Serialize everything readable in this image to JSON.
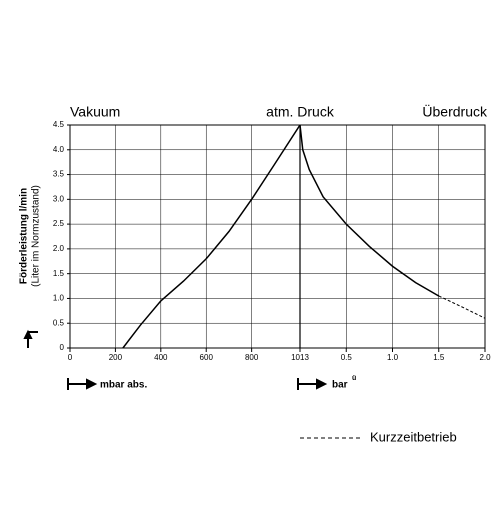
{
  "chart_data": {
    "type": "line",
    "region_labels": [
      "Vakuum",
      "atm. Druck",
      "Überdruck"
    ],
    "y_label": "Förderleistung l/min",
    "y_sublabel": "(Liter im Normzustand)",
    "ylim": [
      0,
      4.5
    ],
    "yticks": [
      0,
      0.5,
      {
        "value": 1,
        "label": "1.0"
      },
      1.5,
      {
        "value": 2,
        "label": "2.0"
      },
      2.5,
      {
        "value": 3,
        "label": "3.0"
      },
      3.5,
      {
        "value": 4,
        "label": "4.0"
      },
      4.5
    ],
    "grid": true,
    "x_left": {
      "label": "mbar abs.",
      "xlim": [
        0,
        1013
      ],
      "xticks": [
        0,
        200,
        400,
        600,
        800,
        1013
      ]
    },
    "x_right": {
      "label": "bar",
      "label_sup": "ü",
      "xlim": [
        0,
        2
      ],
      "xticks": [
        0.5,
        {
          "value": 1,
          "label": "1.0"
        },
        1.5,
        {
          "value": 2,
          "label": "2.0"
        }
      ]
    },
    "series": [
      {
        "xaxis": "left",
        "color": "#000000",
        "style": "solid",
        "x": [
          233,
          310,
          400,
          500,
          600,
          700,
          800,
          900,
          1013
        ],
        "values": [
          0,
          0.46,
          0.95,
          1.35,
          1.8,
          2.35,
          3.0,
          3.7,
          4.5
        ]
      },
      {
        "xaxis": "right",
        "color": "#000000",
        "style": "solid",
        "x": [
          0,
          0.03,
          0.1,
          0.25,
          0.5,
          0.75,
          1.0,
          1.25,
          1.5
        ],
        "values": [
          4.5,
          4.0,
          3.6,
          3.05,
          2.5,
          2.05,
          1.65,
          1.32,
          1.05
        ]
      },
      {
        "name": "Kurzzeitbetrieb",
        "xaxis": "right",
        "color": "#000000",
        "style": "dashed",
        "x": [
          1.5,
          1.75,
          2.0
        ],
        "values": [
          1.05,
          0.83,
          0.6
        ]
      }
    ]
  }
}
